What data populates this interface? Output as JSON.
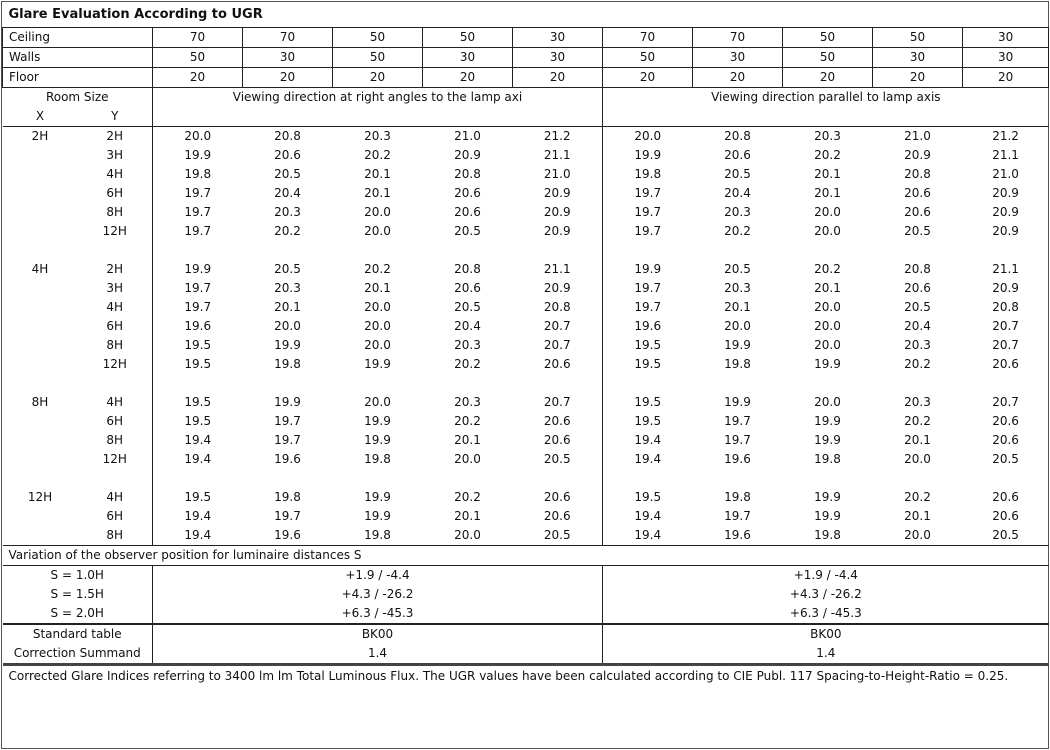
{
  "title": "Glare Evaluation According to UGR",
  "reflectances": [
    {
      "label": "Ceiling",
      "values": [
        "70",
        "70",
        "50",
        "50",
        "30",
        "70",
        "70",
        "50",
        "50",
        "30"
      ]
    },
    {
      "label": "Walls",
      "values": [
        "50",
        "30",
        "50",
        "30",
        "30",
        "50",
        "30",
        "50",
        "30",
        "30"
      ]
    },
    {
      "label": "Floor",
      "values": [
        "20",
        "20",
        "20",
        "20",
        "20",
        "20",
        "20",
        "20",
        "20",
        "20"
      ]
    }
  ],
  "header": {
    "room_size": "Room Size",
    "x": "X",
    "y": "Y",
    "right_angles": "Viewing direction at right angles to the lamp axi",
    "parallel": "Viewing direction parallel to lamp axis"
  },
  "groups": [
    {
      "x": "2H",
      "rows": [
        {
          "y": "2H",
          "v": [
            "20.0",
            "20.8",
            "20.3",
            "21.0",
            "21.2",
            "20.0",
            "20.8",
            "20.3",
            "21.0",
            "21.2"
          ]
        },
        {
          "y": "3H",
          "v": [
            "19.9",
            "20.6",
            "20.2",
            "20.9",
            "21.1",
            "19.9",
            "20.6",
            "20.2",
            "20.9",
            "21.1"
          ]
        },
        {
          "y": "4H",
          "v": [
            "19.8",
            "20.5",
            "20.1",
            "20.8",
            "21.0",
            "19.8",
            "20.5",
            "20.1",
            "20.8",
            "21.0"
          ]
        },
        {
          "y": "6H",
          "v": [
            "19.7",
            "20.4",
            "20.1",
            "20.6",
            "20.9",
            "19.7",
            "20.4",
            "20.1",
            "20.6",
            "20.9"
          ]
        },
        {
          "y": "8H",
          "v": [
            "19.7",
            "20.3",
            "20.0",
            "20.6",
            "20.9",
            "19.7",
            "20.3",
            "20.0",
            "20.6",
            "20.9"
          ]
        },
        {
          "y": "12H",
          "v": [
            "19.7",
            "20.2",
            "20.0",
            "20.5",
            "20.9",
            "19.7",
            "20.2",
            "20.0",
            "20.5",
            "20.9"
          ]
        }
      ]
    },
    {
      "x": "4H",
      "rows": [
        {
          "y": "2H",
          "v": [
            "19.9",
            "20.5",
            "20.2",
            "20.8",
            "21.1",
            "19.9",
            "20.5",
            "20.2",
            "20.8",
            "21.1"
          ]
        },
        {
          "y": "3H",
          "v": [
            "19.7",
            "20.3",
            "20.1",
            "20.6",
            "20.9",
            "19.7",
            "20.3",
            "20.1",
            "20.6",
            "20.9"
          ]
        },
        {
          "y": "4H",
          "v": [
            "19.7",
            "20.1",
            "20.0",
            "20.5",
            "20.8",
            "19.7",
            "20.1",
            "20.0",
            "20.5",
            "20.8"
          ]
        },
        {
          "y": "6H",
          "v": [
            "19.6",
            "20.0",
            "20.0",
            "20.4",
            "20.7",
            "19.6",
            "20.0",
            "20.0",
            "20.4",
            "20.7"
          ]
        },
        {
          "y": "8H",
          "v": [
            "19.5",
            "19.9",
            "20.0",
            "20.3",
            "20.7",
            "19.5",
            "19.9",
            "20.0",
            "20.3",
            "20.7"
          ]
        },
        {
          "y": "12H",
          "v": [
            "19.5",
            "19.8",
            "19.9",
            "20.2",
            "20.6",
            "19.5",
            "19.8",
            "19.9",
            "20.2",
            "20.6"
          ]
        }
      ]
    },
    {
      "x": "8H",
      "rows": [
        {
          "y": "4H",
          "v": [
            "19.5",
            "19.9",
            "20.0",
            "20.3",
            "20.7",
            "19.5",
            "19.9",
            "20.0",
            "20.3",
            "20.7"
          ]
        },
        {
          "y": "6H",
          "v": [
            "19.5",
            "19.7",
            "19.9",
            "20.2",
            "20.6",
            "19.5",
            "19.7",
            "19.9",
            "20.2",
            "20.6"
          ]
        },
        {
          "y": "8H",
          "v": [
            "19.4",
            "19.7",
            "19.9",
            "20.1",
            "20.6",
            "19.4",
            "19.7",
            "19.9",
            "20.1",
            "20.6"
          ]
        },
        {
          "y": "12H",
          "v": [
            "19.4",
            "19.6",
            "19.8",
            "20.0",
            "20.5",
            "19.4",
            "19.6",
            "19.8",
            "20.0",
            "20.5"
          ]
        }
      ]
    },
    {
      "x": "12H",
      "rows": [
        {
          "y": "4H",
          "v": [
            "19.5",
            "19.8",
            "19.9",
            "20.2",
            "20.6",
            "19.5",
            "19.8",
            "19.9",
            "20.2",
            "20.6"
          ]
        },
        {
          "y": "6H",
          "v": [
            "19.4",
            "19.7",
            "19.9",
            "20.1",
            "20.6",
            "19.4",
            "19.7",
            "19.9",
            "20.1",
            "20.6"
          ]
        },
        {
          "y": "8H",
          "v": [
            "19.4",
            "19.6",
            "19.8",
            "20.0",
            "20.5",
            "19.4",
            "19.6",
            "19.8",
            "20.0",
            "20.5"
          ]
        }
      ]
    }
  ],
  "variation": {
    "title": "Variation of the observer position for luminaire distances S",
    "rows": [
      {
        "label": "S = 1.0H",
        "right_angles": "+1.9 / -4.4",
        "parallel": "+1.9 / -4.4"
      },
      {
        "label": "S = 1.5H",
        "right_angles": "+4.3 / -26.2",
        "parallel": "+4.3 / -26.2"
      },
      {
        "label": "S = 2.0H",
        "right_angles": "+6.3 / -45.3",
        "parallel": "+6.3 / -45.3"
      }
    ]
  },
  "standard": {
    "label": "Standard table",
    "right_angles": "BK00",
    "parallel": "BK00"
  },
  "correction": {
    "label": "Correction Summand",
    "right_angles": "1.4",
    "parallel": "1.4"
  },
  "footnote": "Corrected Glare Indices referring to 3400 lm lm Total Luminous Flux. The UGR values have been calculated according to CIE Publ. 117    Spacing-to-Height-Ratio = 0.25."
}
